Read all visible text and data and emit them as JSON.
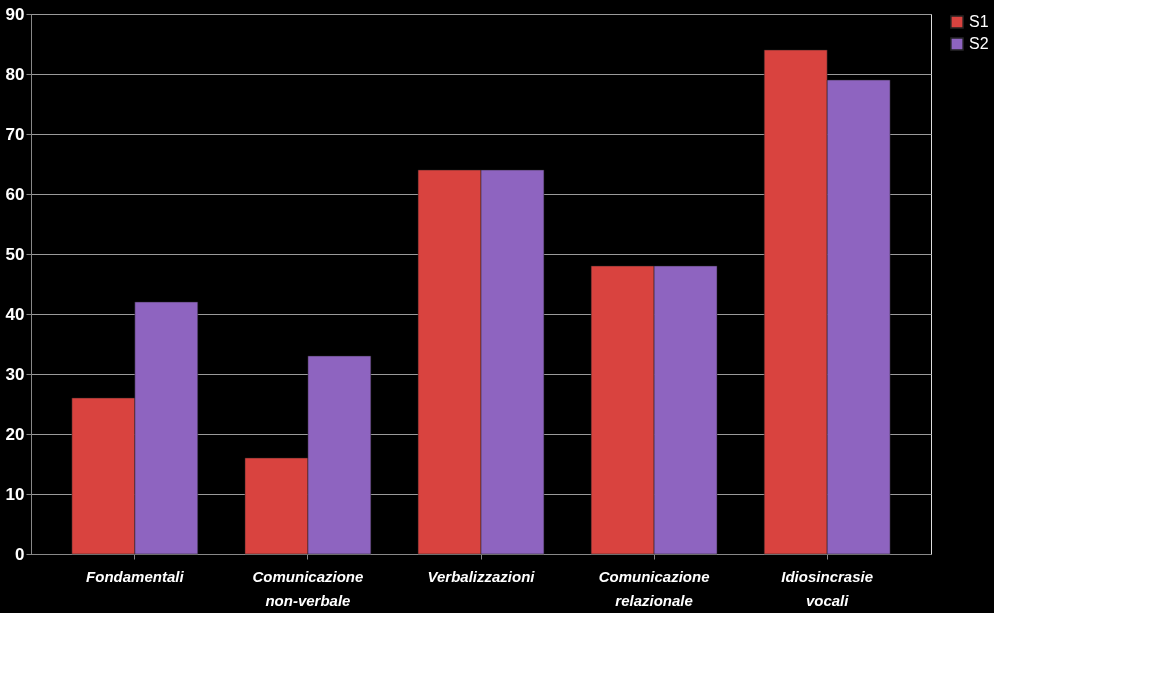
{
  "chart_data": {
    "type": "bar",
    "categories": [
      "Fondamentali",
      "Comunicazione non-verbale",
      "Verbalizzazioni",
      "Comunicazione relazionale",
      "Idiosincrasie vocali"
    ],
    "series": [
      {
        "name": "S1",
        "color": "#d9433f",
        "values": [
          26,
          16,
          64,
          48,
          84
        ]
      },
      {
        "name": "S2",
        "color": "#8e64c0",
        "values": [
          42,
          33,
          64,
          48,
          79
        ]
      }
    ],
    "ylim": [
      0,
      90
    ],
    "yticks": [
      0,
      10,
      20,
      30,
      40,
      50,
      60,
      70,
      80,
      90
    ],
    "grid": "y",
    "legend": "right"
  }
}
